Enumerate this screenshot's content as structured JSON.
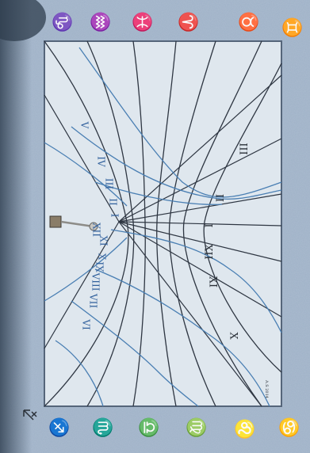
{
  "image": {
    "subject": "sundial",
    "colors": {
      "wall": "#9eb1c7",
      "wall_shadow": "#3a4a5c",
      "dial_face": "#dfe7ee",
      "dial_border": "#55657a",
      "line_dark": "#2e3642",
      "line_blue": "#4a7fb3",
      "label_dark": "#2a3038",
      "label_blue": "#2f5f9c",
      "gnomon": "#8a7d68"
    }
  },
  "numerals_dark": [
    "III",
    "II",
    "I",
    "XII",
    "XI",
    "X"
  ],
  "numerals_blue": [
    "V",
    "IV",
    "III",
    "II",
    "I",
    "XII",
    "XI",
    "X",
    "IX",
    "VIII",
    "VII",
    "VI"
  ],
  "zodiac_top": [
    "♑",
    "♒",
    "♓",
    "♈",
    "♉",
    "♊"
  ],
  "zodiac_bottom": [
    "♐",
    "♏",
    "♎",
    "♍",
    "♌",
    "♋"
  ],
  "signature": "A.S 2014"
}
